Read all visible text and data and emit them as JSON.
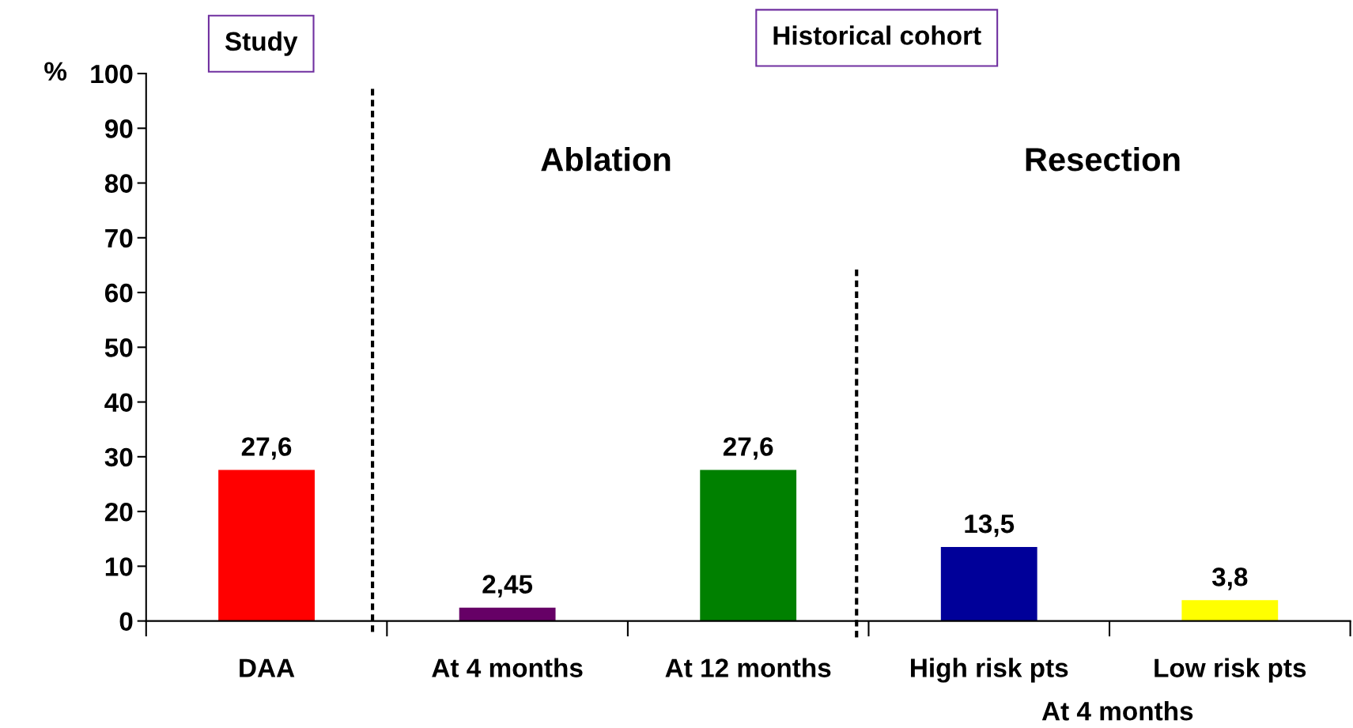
{
  "chart_data": {
    "type": "bar",
    "ylabel": "%",
    "categories": [
      "DAA",
      "At 4 months",
      "At 12 months",
      "High risk pts",
      "Low risk pts"
    ],
    "values": [
      27.6,
      2.45,
      27.6,
      13.5,
      3.8
    ],
    "colors": [
      "#ff0000",
      "#660066",
      "#008000",
      "#000099",
      "#ffff00"
    ],
    "ylim": [
      0,
      100
    ],
    "yticks": [
      0,
      10,
      20,
      30,
      40,
      50,
      60,
      70,
      80,
      90,
      100
    ],
    "value_labels": [
      "27,6",
      "2,45",
      "27,6",
      "13,5",
      "3,8"
    ],
    "grid": false,
    "annotations": [
      "Study",
      "Historical cohort",
      "Ablation",
      "Resection",
      "At 4 months"
    ]
  }
}
